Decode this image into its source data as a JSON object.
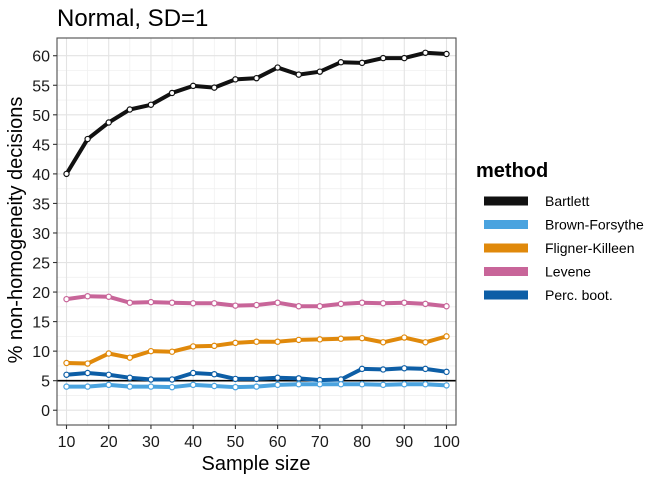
{
  "chart_data": {
    "type": "line",
    "title": "Normal, SD=1",
    "xlabel": "Sample size",
    "ylabel": "% non-homogeneity decisions",
    "xlim": [
      7.75,
      102.25
    ],
    "ylim": [
      -2.5,
      63
    ],
    "x_ticks": [
      10,
      20,
      30,
      40,
      50,
      60,
      70,
      80,
      90,
      100
    ],
    "y_ticks": [
      0,
      5,
      10,
      15,
      20,
      25,
      30,
      35,
      40,
      45,
      50,
      55,
      60
    ],
    "grid": true,
    "reference_line": {
      "y": 5,
      "color": "#000000"
    },
    "legend": {
      "title": "method",
      "position": "right"
    },
    "x": [
      10,
      15,
      20,
      25,
      30,
      35,
      40,
      45,
      50,
      55,
      60,
      65,
      70,
      75,
      80,
      85,
      90,
      95,
      100
    ],
    "series": [
      {
        "name": "Bartlett",
        "color": "#111111",
        "values": [
          40.0,
          45.9,
          48.7,
          50.9,
          51.7,
          53.7,
          54.9,
          54.6,
          56.0,
          56.2,
          58.0,
          56.8,
          57.3,
          58.9,
          58.8,
          59.6,
          59.6,
          60.5,
          60.3
        ]
      },
      {
        "name": "Brown-Forsythe",
        "color": "#4aa3df",
        "values": [
          4.0,
          4.0,
          4.3,
          4.0,
          4.0,
          3.9,
          4.3,
          4.1,
          3.9,
          4.0,
          4.3,
          4.4,
          4.4,
          4.4,
          4.4,
          4.3,
          4.4,
          4.4,
          4.2
        ]
      },
      {
        "name": "Fligner-Killeen",
        "color": "#e0890b",
        "values": [
          8.0,
          7.9,
          9.6,
          8.9,
          10.0,
          9.9,
          10.8,
          10.9,
          11.4,
          11.6,
          11.6,
          11.9,
          12.0,
          12.1,
          12.2,
          11.5,
          12.3,
          11.5,
          12.5
        ]
      },
      {
        "name": "Levene",
        "color": "#c86599",
        "values": [
          18.8,
          19.3,
          19.2,
          18.2,
          18.3,
          18.2,
          18.1,
          18.1,
          17.7,
          17.8,
          18.2,
          17.6,
          17.6,
          18.0,
          18.2,
          18.1,
          18.2,
          18.0,
          17.6
        ]
      },
      {
        "name": "Perc. boot.",
        "color": "#0d5ea6",
        "values": [
          6.0,
          6.3,
          6.0,
          5.5,
          5.2,
          5.2,
          6.3,
          6.1,
          5.3,
          5.3,
          5.5,
          5.4,
          5.1,
          5.2,
          7.0,
          6.9,
          7.1,
          7.0,
          6.5
        ]
      }
    ]
  }
}
